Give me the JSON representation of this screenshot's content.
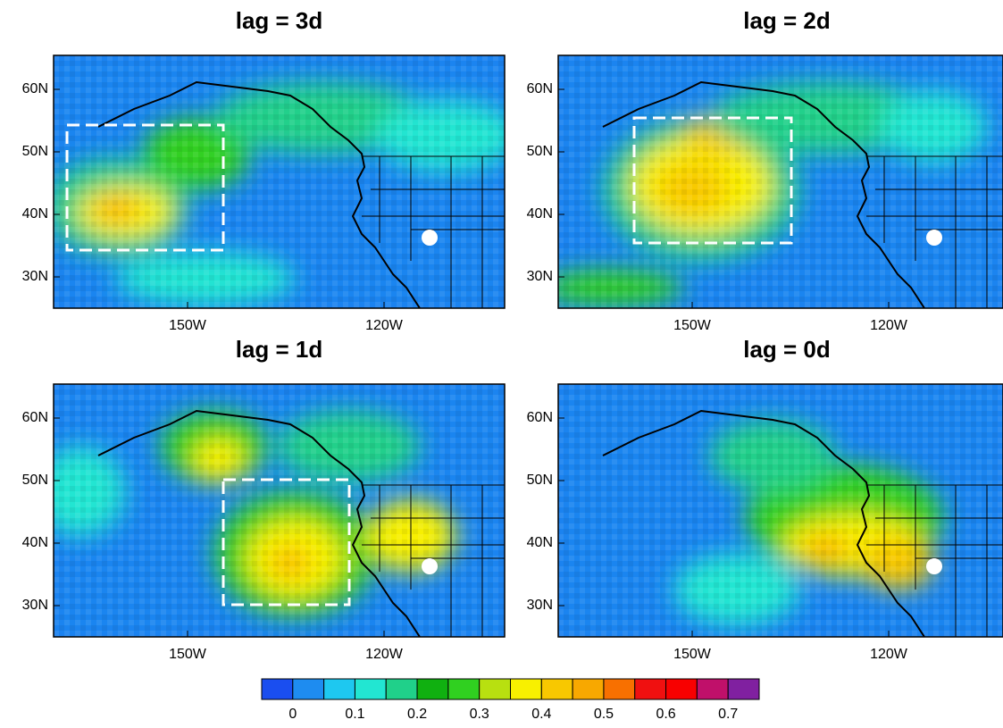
{
  "panels": [
    {
      "title": "lag = 3d",
      "lat_labels": [
        "60N",
        "50N",
        "40N",
        "30N"
      ],
      "lon_labels": [
        "150W",
        "120W"
      ]
    },
    {
      "title": "lag = 2d",
      "lat_labels": [
        "60N",
        "50N",
        "40N",
        "30N"
      ],
      "lon_labels": [
        "150W",
        "120W"
      ]
    },
    {
      "title": "lag = 1d",
      "lat_labels": [
        "60N",
        "50N",
        "40N",
        "30N"
      ],
      "lon_labels": [
        "150W",
        "120W"
      ]
    },
    {
      "title": "lag = 0d",
      "lat_labels": [
        "60N",
        "50N",
        "40N",
        "30N"
      ],
      "lon_labels": [
        "150W",
        "120W"
      ]
    }
  ],
  "colorbar": {
    "colors": [
      "#1a4ef0",
      "#1e8cf0",
      "#1ec8f0",
      "#22e6d2",
      "#20d08a",
      "#10b010",
      "#30d020",
      "#b8e010",
      "#f8f000",
      "#f8c800",
      "#f8a800",
      "#f87000",
      "#f01010",
      "#f80000",
      "#c0106a",
      "#8020a0"
    ],
    "labels": [
      "0",
      "0.1",
      "0.2",
      "0.3",
      "0.4",
      "0.5",
      "0.6",
      "0.7"
    ]
  }
}
